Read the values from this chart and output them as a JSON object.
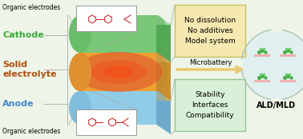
{
  "bg_color": "#eef5e8",
  "labels": {
    "cathode": "Cathode",
    "solid_electrolyte": "Solid\nelectrolyte",
    "anode": "Anode",
    "organic_top": "Organic electrodes",
    "organic_bottom": "Organic electrodes",
    "microbattery": "Microbattery",
    "ald_mld": "ALD/MLD",
    "box1_lines": [
      "No dissolution",
      "No additives",
      "Model system"
    ],
    "box2_lines": [
      "Stability",
      "Interfaces",
      "Compatibility"
    ]
  },
  "colors": {
    "cathode_face": "#78c878",
    "cathode_top": "#a0d8a0",
    "cathode_side": "#58b858",
    "solid_orange": "#f0a030",
    "solid_yellow": "#e8c060",
    "solid_red": "#e86030",
    "anode_face": "#90cce8",
    "anode_top": "#b8dff0",
    "anode_side": "#70b8e0",
    "cathode_text": "#3aaa3a",
    "solid_text": "#b05010",
    "anode_text": "#4488cc",
    "box1_bg": "#f5e8b0",
    "box1_border": "#c8c060",
    "box2_bg": "#d8f0d8",
    "box2_border": "#90c890",
    "microbattery_arrow": "#e8c870",
    "circle_bg": "#e0f0f0",
    "circle_border": "#90c8c8",
    "arrow_color": "#b0c8c0"
  },
  "figsize": [
    3.78,
    1.74
  ],
  "dpi": 100
}
